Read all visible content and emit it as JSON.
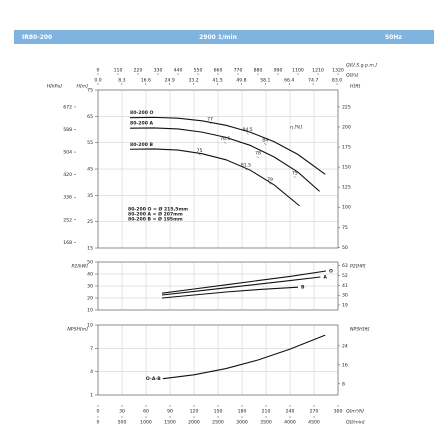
{
  "header": {
    "model": "IR80-200",
    "speed": "2900 1/min",
    "frequency": "50Hz"
  },
  "flow_axes": [
    {
      "label": "Q[U.S.g.p.m.]",
      "position": "top",
      "lim": [
        0,
        1320
      ],
      "ticks": [
        0,
        110,
        220,
        330,
        440,
        550,
        660,
        770,
        880,
        990,
        1100,
        1210,
        1320
      ]
    },
    {
      "label": "Q[l/s]",
      "position": "top",
      "lim": [
        0,
        83.33
      ],
      "ticks": [
        {
          "value": 0,
          "label": "0.0"
        },
        8.3,
        16.6,
        24.9,
        33.2,
        41.5,
        49.8,
        58.1,
        66.4,
        74.7,
        {
          "value": 83,
          "label": "83.0"
        }
      ]
    },
    {
      "label": "Q[m³/h]",
      "position": "bottom",
      "grid": true,
      "lim": [
        0,
        300
      ],
      "ticks": [
        0,
        30,
        60,
        90,
        120,
        150,
        180,
        210,
        240,
        270,
        300
      ]
    },
    {
      "label": "Q[l/min]",
      "position": "bottom",
      "lim": [
        0,
        5000
      ],
      "ticks": [
        0,
        500,
        1000,
        1500,
        2000,
        2500,
        3000,
        3500,
        4000,
        4500
      ]
    }
  ],
  "chart_data": [
    {
      "type": "line",
      "series_label": "above-start",
      "y_axes": [
        {
          "label": "H[m]",
          "side": "left",
          "grid": true,
          "lim": [
            15,
            75
          ],
          "ticks": [
            15,
            25,
            35,
            45,
            55,
            65,
            75
          ]
        },
        {
          "label": "H[kPa]",
          "side": "left-outer",
          "lim": [
            147,
            735
          ],
          "ticks": [
            168,
            252,
            336,
            420,
            504,
            588,
            672
          ]
        },
        {
          "label": "H[ft]",
          "side": "right",
          "lim": [
            49.2,
            246.1
          ],
          "ticks": [
            50,
            75,
            100,
            125,
            150,
            175,
            200,
            225
          ]
        }
      ],
      "series": [
        {
          "name": "80-200 O",
          "x": [
            40,
            70,
            100,
            130,
            160,
            190,
            220,
            250,
            284
          ],
          "values": [
            64.5,
            64.6,
            64.3,
            63.3,
            61.6,
            59,
            55.4,
            50.5,
            43
          ]
        },
        {
          "name": "80-200 A",
          "x": [
            40,
            70,
            100,
            130,
            160,
            190,
            220,
            250,
            277
          ],
          "values": [
            60.5,
            60.6,
            60.2,
            59,
            57,
            54,
            49.6,
            43.8,
            36.5
          ]
        },
        {
          "name": "80-200 B",
          "x": [
            40,
            70,
            100,
            130,
            160,
            190,
            220,
            252
          ],
          "values": [
            52.5,
            52.6,
            52.2,
            50.8,
            48.5,
            44.6,
            39,
            31
          ]
        }
      ],
      "efficiency_label": "η [%]",
      "efficiency": [
        {
          "value": 77,
          "x": 140,
          "y": 64
        },
        {
          "value": 84.5,
          "x": 187,
          "y": 60
        },
        {
          "value": 76.5,
          "x": 159,
          "y": 56.5
        },
        {
          "value": 84,
          "x": 209,
          "y": 56
        },
        {
          "value": 75,
          "x": 127,
          "y": 52
        },
        {
          "value": 78,
          "x": 200,
          "y": 51
        },
        {
          "value": 81.5,
          "x": 185,
          "y": 46.5
        },
        {
          "value": 75,
          "x": 246,
          "y": 43.5
        },
        {
          "value": 79,
          "x": 215,
          "y": 41
        }
      ],
      "notes": [
        "80-200 O = Ø 215,5mm",
        "80-200 A = Ø 207mm",
        "80-200 B = Ø 195mm"
      ]
    },
    {
      "type": "line",
      "series_label": "end",
      "y_axes": [
        {
          "label": "P2[kW]",
          "side": "left",
          "grid": true,
          "lim": [
            10,
            50
          ],
          "ticks": [
            10,
            20,
            30,
            40,
            50
          ]
        },
        {
          "label": "P2[HP]",
          "side": "right",
          "lim": [
            13.4,
            67.1
          ],
          "ticks": [
            19,
            30,
            41,
            52,
            63
          ]
        }
      ],
      "series": [
        {
          "name": "O",
          "x": [
            80,
            120,
            160,
            200,
            240,
            285
          ],
          "values": [
            24,
            27.5,
            31,
            34.5,
            38,
            42.5
          ]
        },
        {
          "name": "A",
          "x": [
            80,
            120,
            160,
            200,
            240,
            278
          ],
          "values": [
            22.5,
            25.5,
            28.5,
            31.5,
            34.5,
            37.5
          ]
        },
        {
          "name": "B",
          "x": [
            80,
            120,
            160,
            200,
            250
          ],
          "values": [
            20,
            22.5,
            25,
            27,
            29
          ]
        }
      ]
    },
    {
      "type": "line",
      "series_label": "before-start",
      "y_axes": [
        {
          "label": "NPSH[m]",
          "side": "left",
          "grid": true,
          "lim": [
            1,
            10
          ],
          "ticks": [
            1,
            4,
            7,
            10
          ]
        },
        {
          "label": "NPSH[ft]",
          "side": "right",
          "lim": [
            3.28,
            32.8
          ],
          "ticks": [
            8,
            16,
            24
          ]
        }
      ],
      "series": [
        {
          "name": "O-A-B",
          "x": [
            81,
            120,
            160,
            200,
            240,
            284
          ],
          "values": [
            3.1,
            3.6,
            4.4,
            5.5,
            6.9,
            8.7
          ]
        }
      ]
    }
  ]
}
